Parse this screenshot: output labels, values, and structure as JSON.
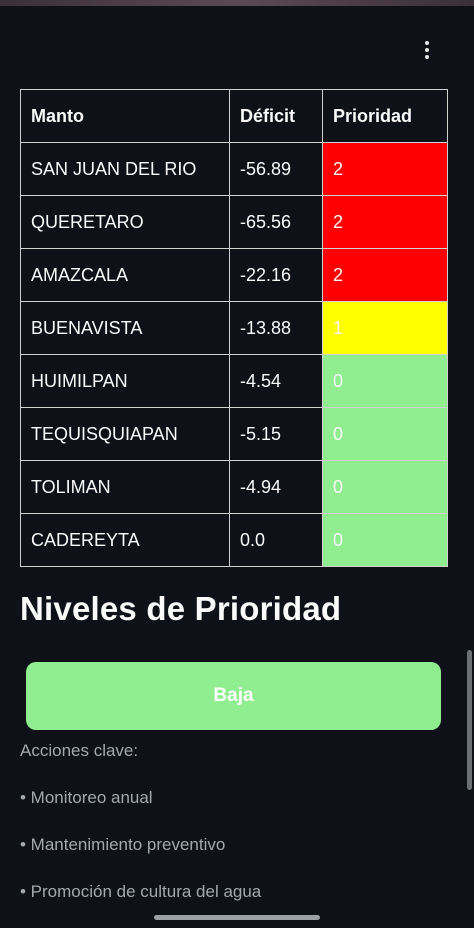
{
  "table": {
    "headers": [
      "Manto",
      "Déficit",
      "Prioridad"
    ],
    "rows": [
      {
        "manto": "SAN JUAN DEL RIO",
        "deficit": "-56.89",
        "prioridad": "2",
        "color": "#ff0000"
      },
      {
        "manto": "QUERETARO",
        "deficit": "-65.56",
        "prioridad": "2",
        "color": "#ff0000"
      },
      {
        "manto": "AMAZCALA",
        "deficit": "-22.16",
        "prioridad": "2",
        "color": "#ff0000"
      },
      {
        "manto": "BUENAVISTA",
        "deficit": "-13.88",
        "prioridad": "1",
        "color": "#ffff00"
      },
      {
        "manto": "HUIMILPAN",
        "deficit": "-4.54",
        "prioridad": "0",
        "color": "#90ee90"
      },
      {
        "manto": "TEQUISQUIAPAN",
        "deficit": "-5.15",
        "prioridad": "0",
        "color": "#90ee90"
      },
      {
        "manto": "TOLIMAN",
        "deficit": "-4.94",
        "prioridad": "0",
        "color": "#90ee90"
      },
      {
        "manto": "CADEREYTA",
        "deficit": "0.0",
        "prioridad": "0",
        "color": "#90ee90"
      }
    ]
  },
  "section": {
    "title": "Niveles de Prioridad",
    "button_label": "Baja",
    "button_color": "#90ee90",
    "actions_label": "Acciones clave:",
    "actions": [
      "• Monitoreo anual",
      "• Mantenimiento preventivo",
      "• Promoción de cultura del agua"
    ]
  },
  "icons": {
    "menu": "vertical-ellipsis-icon"
  }
}
